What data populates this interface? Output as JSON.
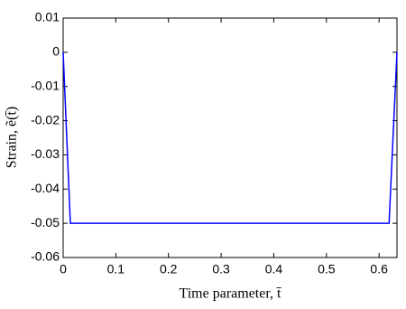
{
  "chart_data": {
    "type": "line",
    "x_label": "Time parameter, t̄",
    "y_label": "Strain, ẽ(t̄)",
    "x": [
      0,
      0.0137,
      0.619,
      0.634
    ],
    "series": [
      {
        "color": "#0000ff",
        "values": [
          0,
          -0.05,
          -0.05,
          0
        ]
      }
    ],
    "xlim": [
      0,
      0.634
    ],
    "ylim": [
      -0.06,
      0.01
    ],
    "xticks": [
      0,
      0.1,
      0.2,
      0.3,
      0.4,
      0.5,
      0.6
    ],
    "yticks": [
      -0.06,
      -0.05,
      -0.04,
      -0.03,
      -0.02,
      -0.01,
      0,
      0.01
    ],
    "grid": false
  }
}
